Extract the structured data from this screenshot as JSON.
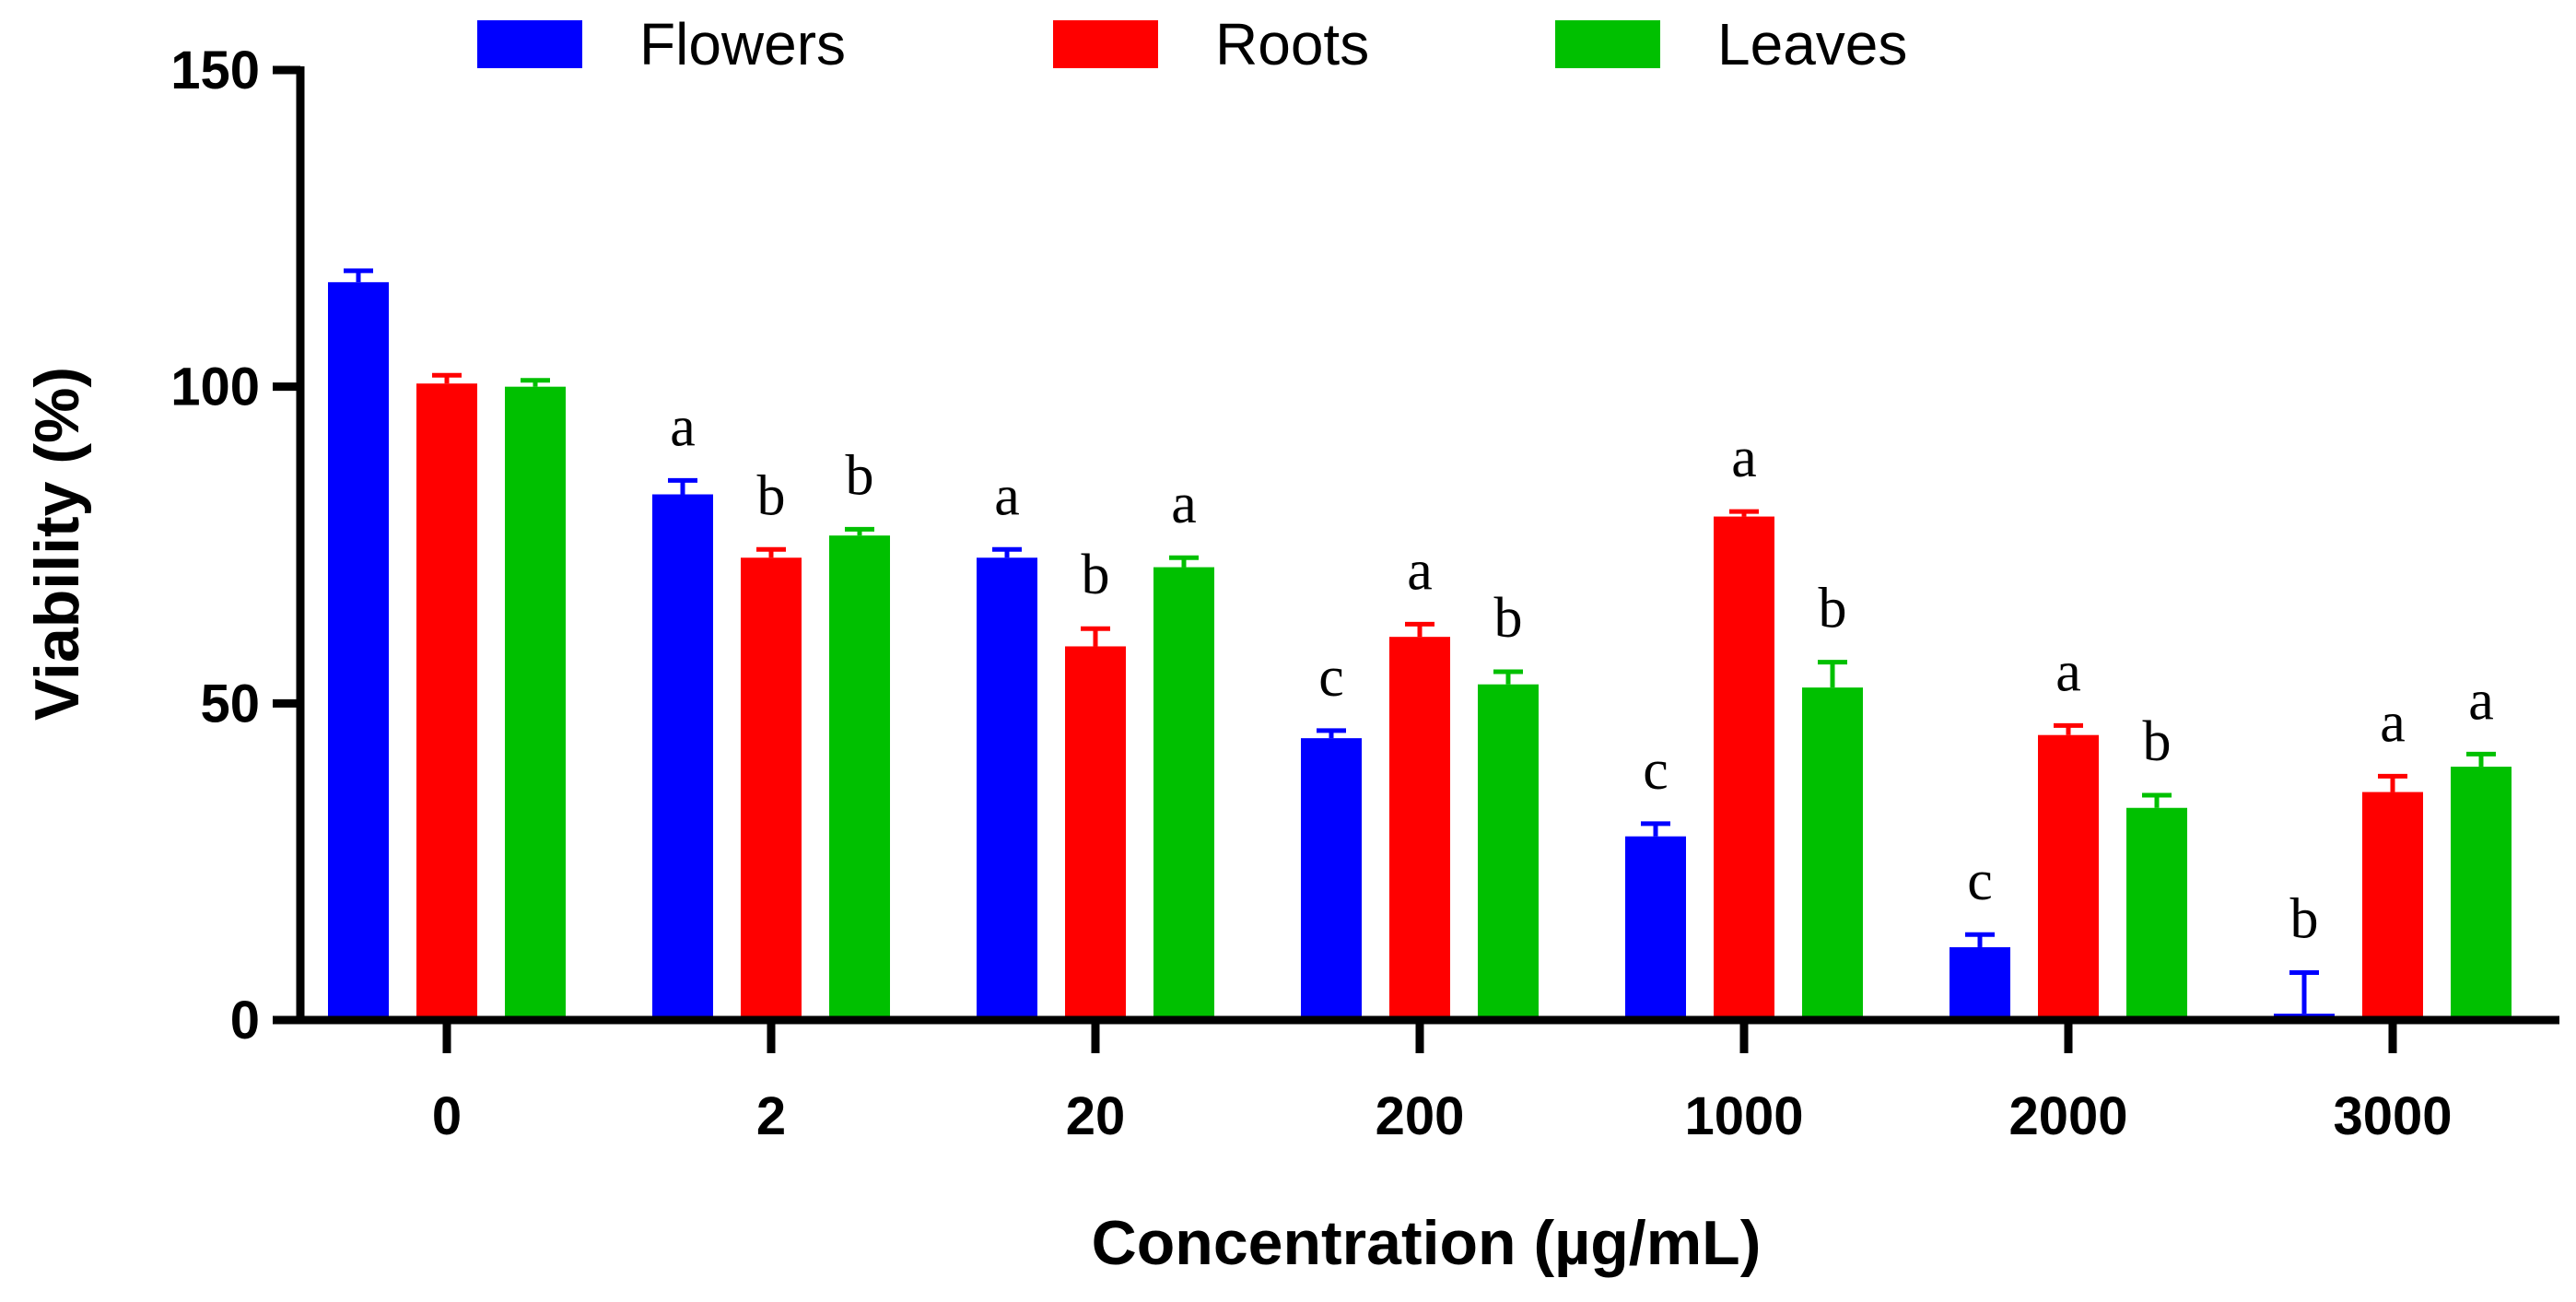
{
  "chart_data": {
    "type": "bar",
    "title": "",
    "xlabel": "Concentration (µg/mL)",
    "ylabel": "Viability (%)",
    "ylim": [
      0,
      150
    ],
    "yticks": [
      "0",
      "50",
      "100",
      "150"
    ],
    "categories": [
      "0",
      "2",
      "20",
      "200",
      "1000",
      "2000",
      "3000"
    ],
    "legend_position": "top",
    "series": [
      {
        "name": "Flowers",
        "color": "#0000ff",
        "values": [
          116.5,
          83,
          73,
          44.5,
          29,
          11.5,
          1
        ],
        "errors": [
          1.8,
          2.2,
          1.3,
          1.2,
          2,
          2,
          6.5
        ],
        "letters": [
          "",
          "a",
          "a",
          "c",
          "c",
          "c",
          "b"
        ]
      },
      {
        "name": "Roots",
        "color": "#ff0000",
        "values": [
          100.5,
          73,
          59,
          60.5,
          79.5,
          45,
          36
        ],
        "errors": [
          1.3,
          1.3,
          2.8,
          2,
          0.8,
          1.5,
          2.5
        ],
        "letters": [
          "",
          "b",
          "b",
          "a",
          "a",
          "a",
          "a"
        ]
      },
      {
        "name": "Leaves",
        "color": "#00c000",
        "values": [
          100,
          76.5,
          71.5,
          53,
          52.5,
          33.5,
          40
        ],
        "errors": [
          1,
          1,
          1.5,
          2,
          4,
          2,
          2
        ],
        "letters": [
          "",
          "b",
          "a",
          "b",
          "b",
          "b",
          "a"
        ]
      }
    ]
  }
}
